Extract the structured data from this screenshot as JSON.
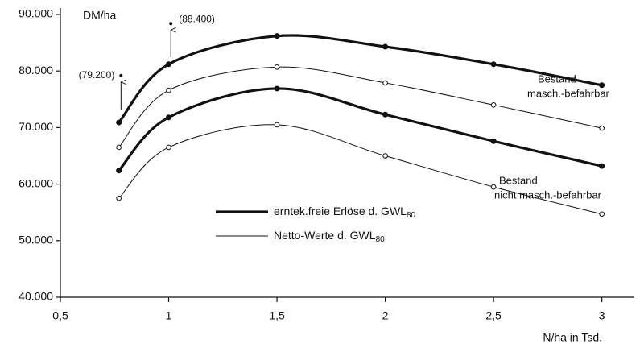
{
  "chart_data": {
    "type": "line",
    "y_label": "DM/ha",
    "x_label": "N/ha in Tsd.",
    "x": [
      0.77,
      1,
      1.5,
      2,
      2.5,
      3
    ],
    "series": [
      {
        "marker": "filled",
        "line_width": 3.2,
        "color": "#111111",
        "values": [
          70900,
          81200,
          86200,
          84300,
          81200,
          77500
        ]
      },
      {
        "marker": "open",
        "line_width": 1,
        "color": "#111111",
        "values": [
          66500,
          76600,
          80700,
          77900,
          74000,
          69900
        ]
      },
      {
        "marker": "filled",
        "line_width": 3.2,
        "color": "#111111",
        "values": [
          62400,
          71800,
          76900,
          72300,
          67600,
          63200
        ]
      },
      {
        "marker": "open",
        "line_width": 1,
        "color": "#111111",
        "values": [
          57500,
          66500,
          70500,
          65000,
          59500,
          54700
        ]
      }
    ],
    "annotations": [
      {
        "x": 0.78,
        "y": 79200,
        "label": "(79.200)"
      },
      {
        "x": 1.01,
        "y": 88400,
        "label": "(88.400)"
      }
    ],
    "curve_labels": [
      {
        "lines": [
          "Bestand",
          "masch.-befahrbar"
        ]
      },
      {
        "lines": [
          "Bestand",
          "nicht masch.-befahrbar"
        ]
      }
    ],
    "legend": [
      {
        "text": "erntek.freie Erlöse d. GWL",
        "sub": "80",
        "line_width": 3.2
      },
      {
        "text": "Netto-Werte d. GWL",
        "sub": "80",
        "line_width": 1
      }
    ],
    "xlim": [
      0.5,
      3.15
    ],
    "ylim": [
      40000,
      90000
    ],
    "xticks": [
      {
        "value": 0.5,
        "label": "0,5"
      },
      1,
      {
        "value": 1.5,
        "label": "1,5"
      },
      2,
      {
        "value": 2.5,
        "label": "2,5"
      },
      3
    ],
    "yticks": [
      {
        "value": 40000,
        "label": "40.000"
      },
      {
        "value": 50000,
        "label": "50.000"
      },
      {
        "value": 60000,
        "label": "60.000"
      },
      {
        "value": 70000,
        "label": "70.000"
      },
      {
        "value": 80000,
        "label": "80.000"
      },
      {
        "value": 90000,
        "label": "90.000"
      }
    ],
    "grid": false
  }
}
